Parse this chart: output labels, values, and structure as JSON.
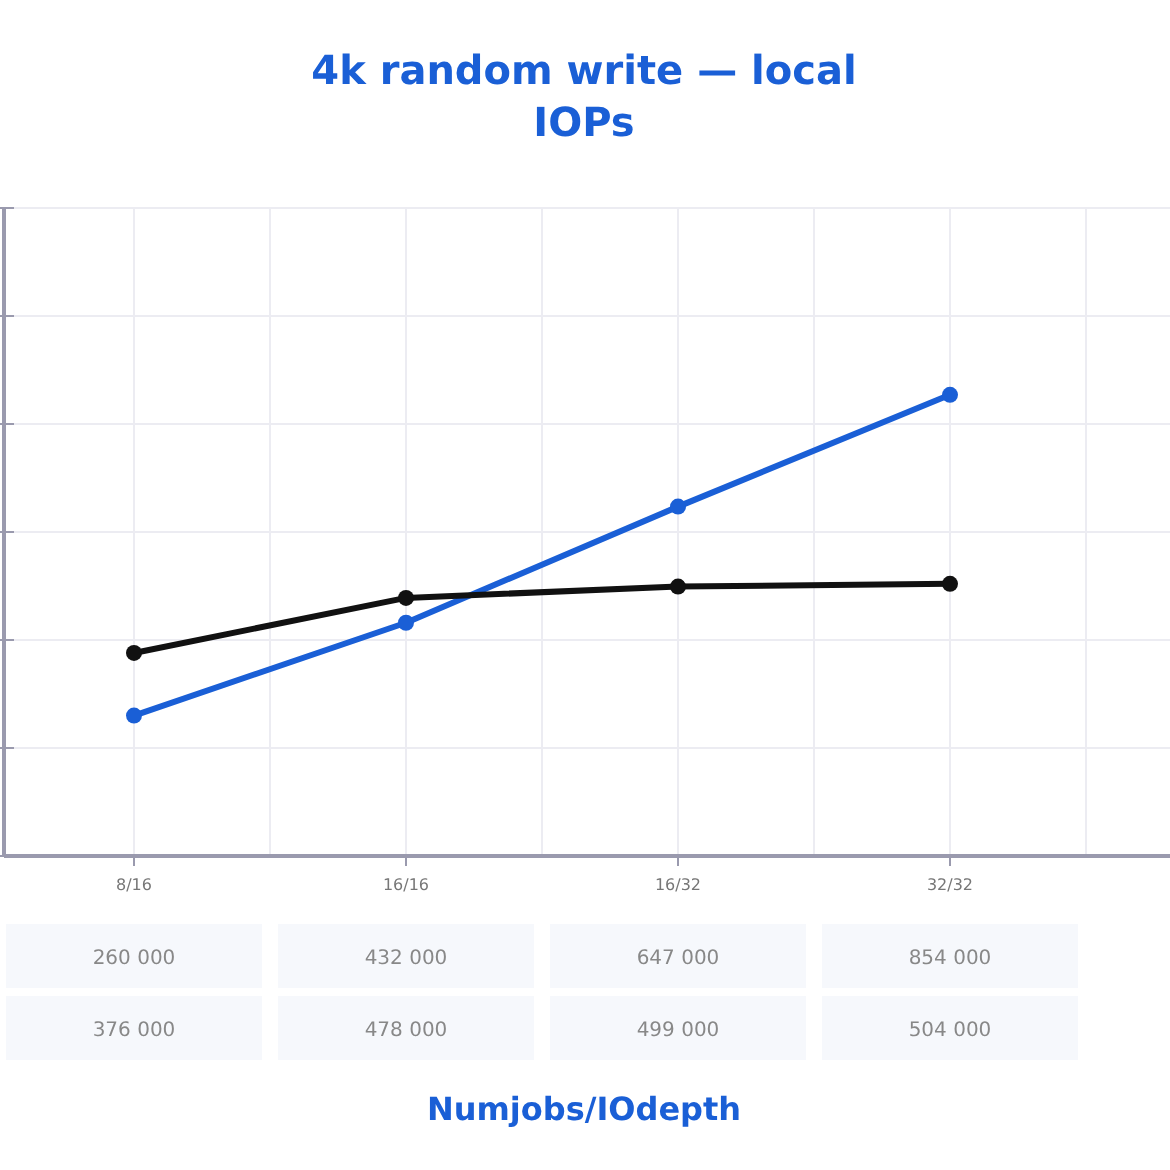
{
  "chart_data": {
    "type": "line",
    "title": "4k random write — local\nIOPs",
    "annotations": [
      "Numjobs/IOdepth"
    ],
    "categories": [
      "8/16",
      "16/16",
      "16/32",
      "32/32"
    ],
    "series": [
      {
        "color": "#1a5fd6",
        "values": [
          260000,
          432000,
          647000,
          854000
        ]
      },
      {
        "color": "#111111",
        "values": [
          376000,
          478000,
          499000,
          504000
        ]
      }
    ],
    "ylim": [
      0,
      1200000
    ],
    "yticks": [
      {
        "value": 0,
        "label": null
      },
      {
        "value": 200000,
        "label": null
      },
      {
        "value": 400000,
        "label": null
      },
      {
        "value": 600000,
        "label": null
      },
      {
        "value": 800000,
        "label": null
      },
      {
        "value": 1000000,
        "label": null
      },
      {
        "value": 1200000,
        "label": null
      }
    ],
    "tick_labels": "x",
    "grid": true,
    "marker": "circle",
    "line_style": "solid",
    "data_labels": true
  }
}
